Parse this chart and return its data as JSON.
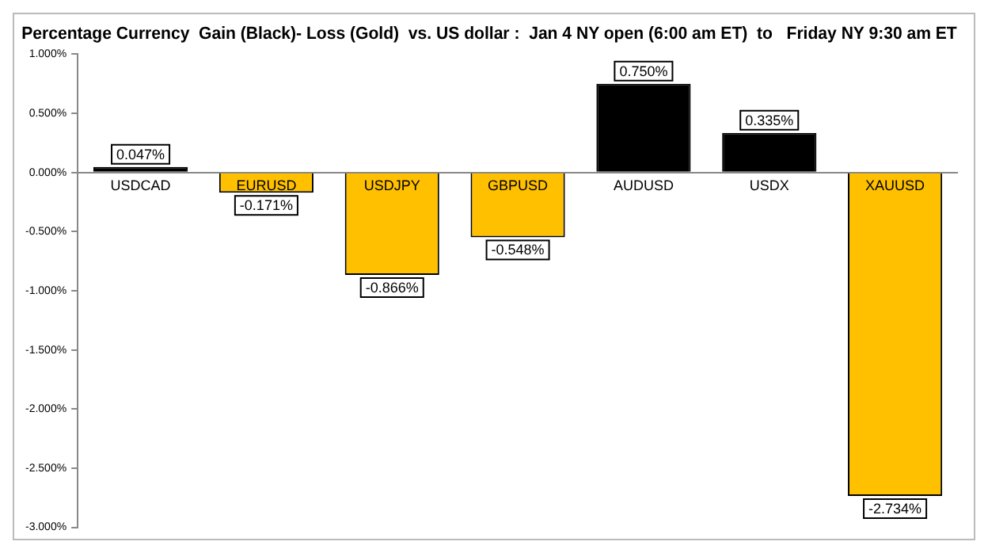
{
  "chart_data": {
    "type": "bar",
    "title": "Percentage Currency  Gain (Black)- Loss (Gold)  vs. US dollar :  Jan 4 NY open (6:00 am ET)  to   Friday NY 9:30 am ET",
    "categories": [
      "USDCAD",
      "EURUSD",
      "USDJPY",
      "GBPUSD",
      "AUDUSD",
      "USDX",
      "XAUUSD"
    ],
    "values": [
      0.047,
      -0.171,
      -0.866,
      -0.548,
      0.75,
      0.335,
      -2.734
    ],
    "colors": [
      "#000000",
      "#ffc000",
      "#ffc000",
      "#ffc000",
      "#000000",
      "#000000",
      "#ffc000"
    ],
    "value_labels": [
      "0.047%",
      "-0.171%",
      "-0.866%",
      "-0.548%",
      "0.750%",
      "0.335%",
      "-2.734%"
    ],
    "ylim": [
      -3,
      1
    ],
    "yticks": [
      {
        "value": 1,
        "label": "1.000%"
      },
      {
        "value": 0.5,
        "label": "0.500%"
      },
      {
        "value": 0,
        "label": "0.000%"
      },
      {
        "value": -0.5,
        "label": "-0.500%"
      },
      {
        "value": -1,
        "label": "-1.000%"
      },
      {
        "value": -1.5,
        "label": "-1.500%"
      },
      {
        "value": -2,
        "label": "-2.000%"
      },
      {
        "value": -2.5,
        "label": "-2.500%"
      },
      {
        "value": -3,
        "label": "-3.000%"
      }
    ],
    "grid": false,
    "legend": false
  }
}
